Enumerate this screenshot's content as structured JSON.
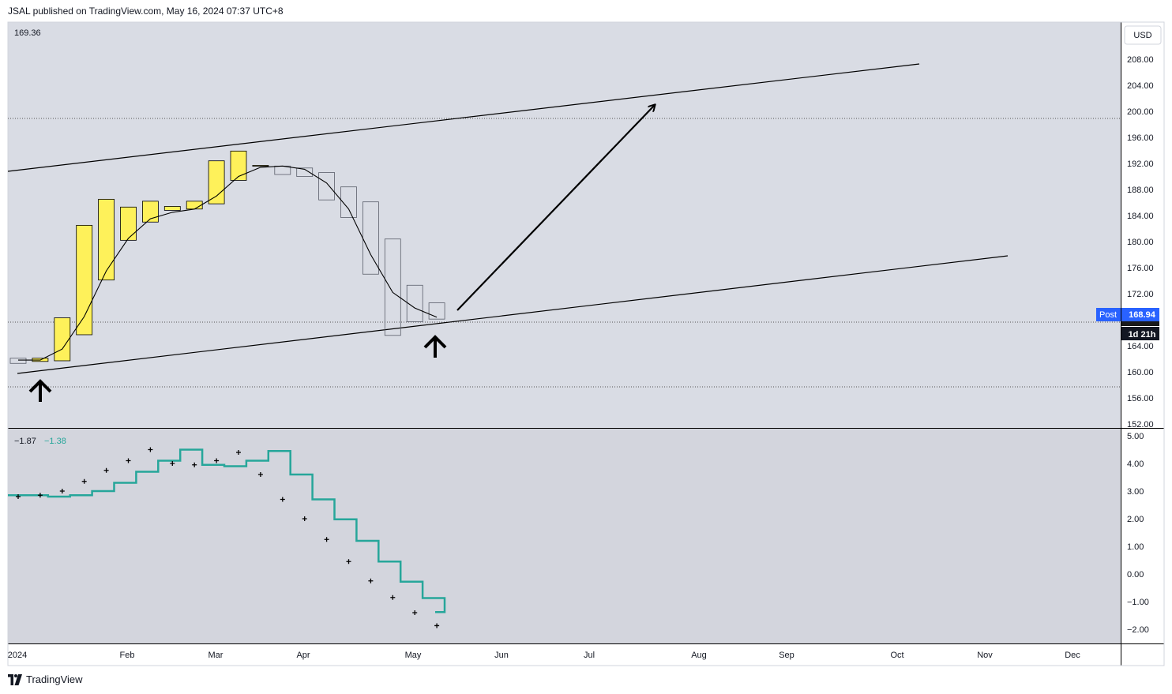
{
  "header": {
    "published": "JSAL published on TradingView.com, May 16, 2024 07:37 UTC+8"
  },
  "footer": {
    "brand": "TradingView"
  },
  "price_scale": {
    "currency": "USD",
    "post_label": "Post",
    "post_value": "168.94",
    "countdown": "1d 21h"
  },
  "legend": {
    "main_value": "169.36",
    "osc_value1": "−1.87",
    "osc_value2": "−1.38"
  },
  "colors": {
    "bg_main": "#d9dce4",
    "bg_osc": "#d3d5dd",
    "bull": "#fef15a",
    "osc_line": "#26a69a",
    "post_badge": "#2962ff"
  },
  "chart_data": [
    {
      "type": "candlestick",
      "interval": "weekly (Heikin-Ashi style)",
      "ylim": [
        152,
        210
      ],
      "yticks": [
        "208.00",
        "204.00",
        "200.00",
        "196.00",
        "192.00",
        "188.00",
        "184.00",
        "180.00",
        "176.00",
        "172.00",
        "168.00",
        "164.00",
        "160.00",
        "156.00",
        "152.00"
      ],
      "xticks": [
        "2024",
        "Feb",
        "Mar",
        "Apr",
        "May",
        "Jun",
        "Jul",
        "Aug",
        "Sep",
        "Oct",
        "Nov",
        "Dec"
      ],
      "candles": [
        {
          "open": 161.3,
          "close": 162.1,
          "dir": "down"
        },
        {
          "open": 161.6,
          "close": 162.1,
          "dir": "up"
        },
        {
          "open": 161.7,
          "close": 168.3,
          "dir": "up"
        },
        {
          "open": 165.7,
          "close": 182.5,
          "dir": "up"
        },
        {
          "open": 174.1,
          "close": 186.5,
          "dir": "up"
        },
        {
          "open": 180.2,
          "close": 185.3,
          "dir": "up"
        },
        {
          "open": 183.0,
          "close": 186.2,
          "dir": "up"
        },
        {
          "open": 184.8,
          "close": 185.4,
          "dir": "up"
        },
        {
          "open": 185.0,
          "close": 186.2,
          "dir": "up"
        },
        {
          "open": 185.8,
          "close": 192.4,
          "dir": "up"
        },
        {
          "open": 189.4,
          "close": 193.9,
          "dir": "up"
        },
        {
          "open": 191.7,
          "close": 191.7,
          "dir": "up"
        },
        {
          "open": 191.6,
          "close": 190.3,
          "dir": "down"
        },
        {
          "open": 191.3,
          "close": 190.0,
          "dir": "down"
        },
        {
          "open": 190.6,
          "close": 186.4,
          "dir": "down"
        },
        {
          "open": 188.4,
          "close": 183.7,
          "dir": "down"
        },
        {
          "open": 186.1,
          "close": 175.0,
          "dir": "down"
        },
        {
          "open": 180.4,
          "close": 165.6,
          "dir": "down"
        },
        {
          "open": 173.3,
          "close": 167.7,
          "dir": "down"
        },
        {
          "open": 170.6,
          "close": 168.1,
          "dir": "down"
        }
      ],
      "moving_average": [
        161.8,
        161.8,
        163.5,
        168.5,
        175.5,
        180.5,
        183.5,
        184.5,
        185.0,
        187.0,
        190.0,
        191.4,
        191.6,
        191.1,
        189.0,
        185.0,
        178.0,
        172.2,
        169.8,
        168.4
      ],
      "last_price": 168.94
    },
    {
      "type": "line",
      "name": "oscillator",
      "ylim": [
        -2.5,
        5.0
      ],
      "yticks": [
        "5.00",
        "4.00",
        "3.00",
        "2.00",
        "1.00",
        "0.00",
        "−1.00",
        "−2.00"
      ],
      "step_values": [
        2.85,
        2.85,
        2.8,
        2.85,
        3.0,
        3.3,
        3.7,
        4.1,
        4.5,
        3.95,
        3.9,
        4.1,
        4.45,
        3.6,
        2.7,
        1.98,
        1.2,
        0.45,
        -0.28,
        -0.87,
        -1.38
      ],
      "crosses": [
        2.8,
        2.85,
        3.0,
        3.35,
        3.75,
        4.1,
        4.5,
        4.0,
        3.95,
        4.1,
        4.4,
        3.6,
        2.7,
        2.0,
        1.25,
        0.45,
        -0.25,
        -0.85,
        -1.4,
        -1.87
      ]
    }
  ]
}
